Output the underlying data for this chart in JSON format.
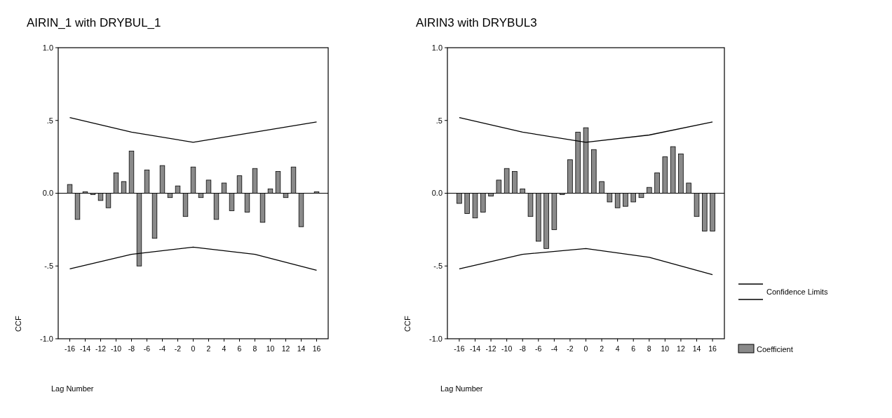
{
  "chart_data": [
    {
      "type": "bar",
      "title": "AIRIN_1 with DRYBUL_1",
      "xlabel": "Lag Number",
      "ylabel": "CCF",
      "x": [
        -16,
        -15,
        -14,
        -13,
        -12,
        -11,
        -10,
        -9,
        -8,
        -7,
        -6,
        -5,
        -4,
        -3,
        -2,
        -1,
        0,
        1,
        2,
        3,
        4,
        5,
        6,
        7,
        8,
        9,
        10,
        11,
        12,
        13,
        14,
        15,
        16
      ],
      "xlim": [
        -17.5,
        17.5
      ],
      "xticks": [
        -16,
        -14,
        -12,
        -10,
        -8,
        -6,
        -4,
        -2,
        0,
        2,
        4,
        6,
        8,
        10,
        12,
        14,
        16
      ],
      "ylim": [
        -1,
        1
      ],
      "yticks": [
        {
          "value": -1,
          "label": "-1.0"
        },
        {
          "value": -0.5,
          "label": "-.5"
        },
        {
          "value": 0,
          "label": "0.0"
        },
        {
          "value": 0.5,
          "label": ".5"
        },
        {
          "value": 1,
          "label": "1.0"
        }
      ],
      "legend": false,
      "series": [
        {
          "color": "#8a8a8a",
          "values": [
            0.06,
            -0.18,
            0.01,
            -0.01,
            -0.05,
            -0.1,
            0.14,
            0.08,
            0.29,
            -0.5,
            0.16,
            -0.31,
            0.19,
            -0.03,
            0.05,
            -0.16,
            0.18,
            -0.03,
            0.09,
            -0.18,
            0.07,
            -0.12,
            0.12,
            -0.13,
            0.17,
            -0.2,
            0.03,
            0.15,
            -0.03,
            0.18,
            -0.23,
            0.0,
            0.01
          ]
        },
        {
          "type": "line",
          "color": "#000000",
          "x": [
            -16,
            -8,
            0,
            8,
            16
          ],
          "values": [
            0.52,
            0.42,
            0.35,
            0.42,
            0.49
          ]
        },
        {
          "type": "line",
          "color": "#000000",
          "x": [
            -16,
            -8,
            0,
            8,
            16
          ],
          "values": [
            -0.52,
            -0.42,
            -0.37,
            -0.42,
            -0.53
          ]
        }
      ]
    },
    {
      "type": "bar",
      "title": "AIRIN3 with DRYBUL3",
      "xlabel": "Lag Number",
      "ylabel": "CCF",
      "x": [
        -16,
        -15,
        -14,
        -13,
        -12,
        -11,
        -10,
        -9,
        -8,
        -7,
        -6,
        -5,
        -4,
        -3,
        -2,
        -1,
        0,
        1,
        2,
        3,
        4,
        5,
        6,
        7,
        8,
        9,
        10,
        11,
        12,
        13,
        14,
        15,
        16
      ],
      "xlim": [
        -17.5,
        17.5
      ],
      "xticks": [
        -16,
        -14,
        -12,
        -10,
        -8,
        -6,
        -4,
        -2,
        0,
        2,
        4,
        6,
        8,
        10,
        12,
        14,
        16
      ],
      "ylim": [
        -1,
        1
      ],
      "yticks": [
        {
          "value": -1,
          "label": "-1.0"
        },
        {
          "value": -0.5,
          "label": "-.5"
        },
        {
          "value": 0,
          "label": "0.0"
        },
        {
          "value": 0.5,
          "label": ".5"
        },
        {
          "value": 1,
          "label": "1.0"
        }
      ],
      "legend": "right",
      "series": [
        {
          "name": "Coefficient",
          "color": "#8a8a8a",
          "values": [
            -0.07,
            -0.14,
            -0.17,
            -0.13,
            -0.02,
            0.09,
            0.17,
            0.15,
            0.03,
            -0.16,
            -0.33,
            -0.38,
            -0.25,
            -0.01,
            0.23,
            0.42,
            0.45,
            0.3,
            0.08,
            -0.06,
            -0.1,
            -0.09,
            -0.06,
            -0.03,
            0.04,
            0.14,
            0.25,
            0.32,
            0.27,
            0.07,
            -0.16,
            -0.26,
            -0.26
          ]
        },
        {
          "type": "line",
          "name": "Confidence Limits",
          "color": "#000000",
          "x": [
            -16,
            -8,
            0,
            8,
            16
          ],
          "values": [
            0.52,
            0.42,
            0.35,
            0.4,
            0.49
          ]
        },
        {
          "type": "line",
          "color": "#000000",
          "x": [
            -16,
            -8,
            0,
            8,
            16
          ],
          "values": [
            -0.52,
            -0.42,
            -0.38,
            -0.44,
            -0.56
          ]
        }
      ]
    }
  ]
}
